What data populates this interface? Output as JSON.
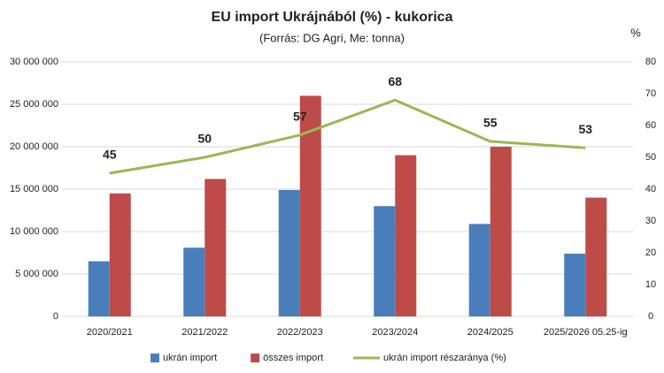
{
  "chart_data": {
    "type": "bar_line",
    "title": "EU import Ukrájnából (%) - kukorica",
    "subtitle": "(Forrás: DG Agri, Me: tonna)",
    "y2label": "%",
    "categories": [
      "2020/2021",
      "2021/2022",
      "2022/2023",
      "2023/2024",
      "2024/2025",
      "2025/2026 05.25-ig"
    ],
    "series": [
      {
        "name": "ukrán import",
        "type": "bar",
        "color": "#4a7ebb",
        "values": [
          6500000,
          8100000,
          14900000,
          13000000,
          10900000,
          7400000
        ]
      },
      {
        "name": "összes import",
        "type": "bar",
        "color": "#be4b48",
        "values": [
          14500000,
          16200000,
          26000000,
          19000000,
          20000000,
          14000000
        ]
      },
      {
        "name": "ukrán import részaránya (%)",
        "type": "line",
        "axis": "y2",
        "color": "#98b954",
        "values": [
          45,
          50,
          57,
          68,
          55,
          53
        ]
      }
    ],
    "ylim": [
      0,
      30000000
    ],
    "yticks": [
      0,
      {
        "value": 5000000,
        "label": "5 000 000"
      },
      {
        "value": 10000000,
        "label": "10 000 000"
      },
      {
        "value": 15000000,
        "label": "15 000 000"
      },
      {
        "value": 20000000,
        "label": "20 000 000"
      },
      {
        "value": 25000000,
        "label": "25 000 000"
      },
      {
        "value": 30000000,
        "label": "30 000 000"
      }
    ],
    "y2lim": [
      0,
      80
    ],
    "y2ticks": [
      0,
      10,
      20,
      30,
      40,
      50,
      60,
      70,
      80
    ],
    "grid": true,
    "legend": "bottom"
  }
}
